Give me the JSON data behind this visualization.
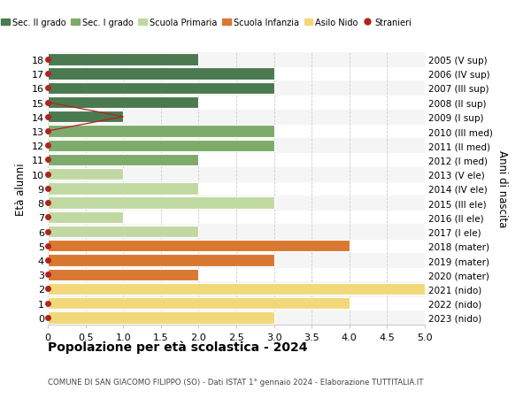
{
  "ages": [
    18,
    17,
    16,
    15,
    14,
    13,
    12,
    11,
    10,
    9,
    8,
    7,
    6,
    5,
    4,
    3,
    2,
    1,
    0
  ],
  "years": [
    "2005 (V sup)",
    "2006 (IV sup)",
    "2007 (III sup)",
    "2008 (II sup)",
    "2009 (I sup)",
    "2010 (III med)",
    "2011 (II med)",
    "2012 (I med)",
    "2013 (V ele)",
    "2014 (IV ele)",
    "2015 (III ele)",
    "2016 (II ele)",
    "2017 (I ele)",
    "2018 (mater)",
    "2019 (mater)",
    "2020 (mater)",
    "2021 (nido)",
    "2022 (nido)",
    "2023 (nido)"
  ],
  "bar_values": [
    2,
    3,
    3,
    2,
    1,
    3,
    3,
    2,
    1,
    2,
    3,
    1,
    2,
    4,
    3,
    2,
    5,
    4,
    3
  ],
  "bar_colors": [
    "#4b7a50",
    "#4b7a50",
    "#4b7a50",
    "#4b7a50",
    "#4b7a50",
    "#7eab6a",
    "#7eab6a",
    "#7eab6a",
    "#c0d9a0",
    "#c0d9a0",
    "#c0d9a0",
    "#c0d9a0",
    "#c0d9a0",
    "#d97830",
    "#d97830",
    "#d97830",
    "#f2d878",
    "#f2d878",
    "#f2d878"
  ],
  "stranieri_color": "#b22222",
  "legend_labels": [
    "Sec. II grado",
    "Sec. I grado",
    "Scuola Primaria",
    "Scuola Infanzia",
    "Asilo Nido",
    "Stranieri"
  ],
  "legend_colors": [
    "#4b7a50",
    "#7eab6a",
    "#c0d9a0",
    "#d97830",
    "#f2d878",
    "#b22222"
  ],
  "ylabel_left": "Età alunni",
  "ylabel_right": "Anni di nascita",
  "title": "Popolazione per età scolastica - 2024",
  "subtitle": "COMUNE DI SAN GIACOMO FILIPPO (SO) - Dati ISTAT 1° gennaio 2024 - Elaborazione TUTTITALIA.IT",
  "xlim": [
    0,
    5.0
  ],
  "xticks": [
    0,
    0.5,
    1.0,
    1.5,
    2.0,
    2.5,
    3.0,
    3.5,
    4.0,
    4.5,
    5.0
  ],
  "xtick_labels": [
    "0",
    "0.5",
    "1.0",
    "1.5",
    "2.0",
    "2.5",
    "3.0",
    "3.5",
    "4.0",
    "4.5",
    "5.0"
  ],
  "bg_color": "#ffffff",
  "row_alt_color": "#f5f5f5",
  "grid_color": "#cccccc"
}
